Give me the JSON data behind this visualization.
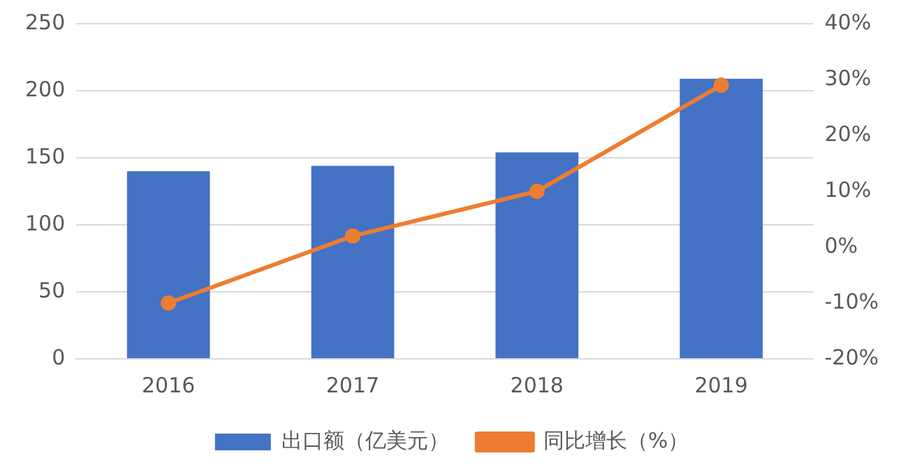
{
  "chart_data": {
    "type": "bar",
    "categories": [
      "2016",
      "2017",
      "2018",
      "2019"
    ],
    "series": [
      {
        "name": "出口额（亿美元）",
        "color": "#4472c4",
        "values": [
          140,
          144,
          154,
          209
        ]
      },
      {
        "name": "同比增长（%）",
        "type": "line",
        "axis": "y2",
        "color": "#ed7d31",
        "values": [
          -10,
          2,
          10,
          29
        ]
      }
    ],
    "ylim": [
      0,
      250
    ],
    "yticks": [
      0,
      50,
      100,
      150,
      200,
      250
    ],
    "y2lim": [
      -20,
      40
    ],
    "y2ticks": [
      {
        "value": -20,
        "label": "-20%"
      },
      {
        "value": -10,
        "label": "-10%"
      },
      {
        "value": 0,
        "label": "0%"
      },
      {
        "value": 10,
        "label": "10%"
      },
      {
        "value": 20,
        "label": "20%"
      },
      {
        "value": 30,
        "label": "30%"
      },
      {
        "value": 40,
        "label": "40%"
      }
    ],
    "grid": "y",
    "legend": "bottom",
    "marker": "circle",
    "line_style": "solid"
  }
}
